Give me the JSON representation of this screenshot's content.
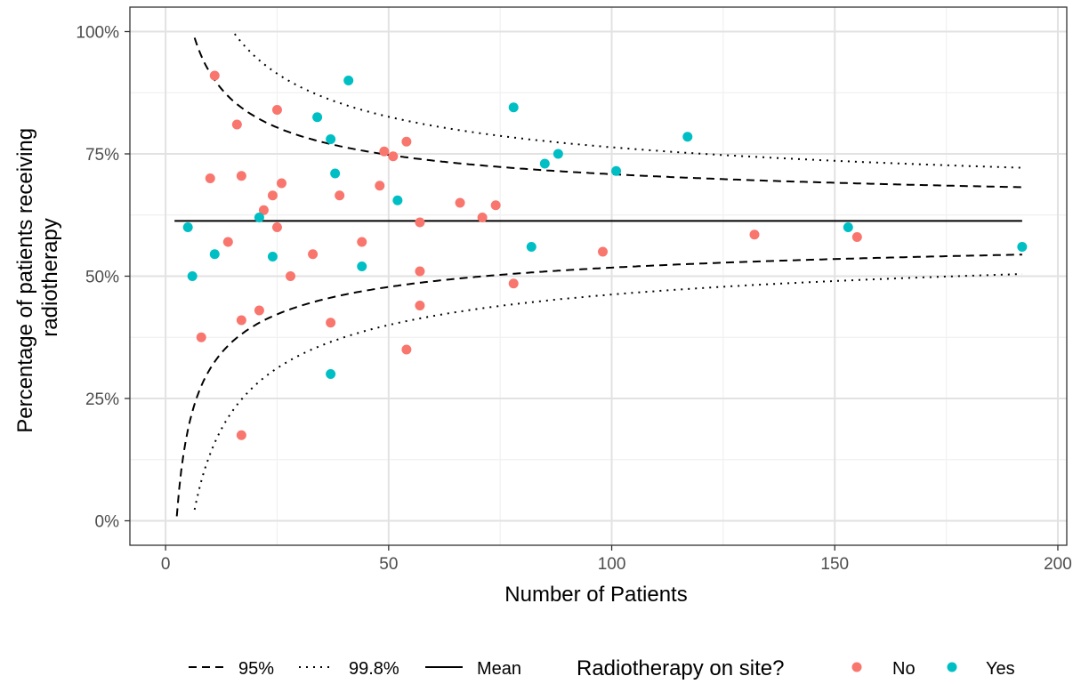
{
  "chart_data": {
    "type": "scatter",
    "xlabel": "Number of Patients",
    "ylabel_lines": [
      "Percentage of patients receiving",
      "radiotherapy"
    ],
    "xlim": [
      -8,
      202
    ],
    "ylim": [
      -0.05,
      1.05
    ],
    "xticks": [
      0,
      50,
      100,
      150,
      200
    ],
    "xtick_labels": [
      "0",
      "50",
      "100",
      "150",
      "200"
    ],
    "yticks": [
      0,
      0.25,
      0.5,
      0.75,
      1.0
    ],
    "ytick_labels": [
      "0%",
      "25%",
      "50%",
      "75%",
      "100%"
    ],
    "grid": true,
    "mean": 0.613,
    "funnel_limits": [
      {
        "label": "95%",
        "z": 1.96
      },
      {
        "label": "99.8%",
        "z": 3.09
      }
    ],
    "funnel_x_range": [
      2,
      192
    ],
    "legend": {
      "position": "bottom",
      "lines": [
        {
          "label": "95%",
          "style": "dashed"
        },
        {
          "label": "99.8%",
          "style": "dotted"
        },
        {
          "label": "Mean",
          "style": "solid"
        }
      ],
      "color_title": "Radiotherapy on site?"
    },
    "series": [
      {
        "name": "No",
        "color": "#F8766D",
        "points": [
          [
            8,
            0.375
          ],
          [
            10,
            0.7
          ],
          [
            11,
            0.91
          ],
          [
            14,
            0.57
          ],
          [
            16,
            0.81
          ],
          [
            17,
            0.705
          ],
          [
            17,
            0.41
          ],
          [
            17,
            0.175
          ],
          [
            21,
            0.43
          ],
          [
            22,
            0.635
          ],
          [
            24,
            0.665
          ],
          [
            25,
            0.84
          ],
          [
            25,
            0.6
          ],
          [
            26,
            0.69
          ],
          [
            28,
            0.5
          ],
          [
            33,
            0.545
          ],
          [
            37,
            0.405
          ],
          [
            39,
            0.665
          ],
          [
            44,
            0.57
          ],
          [
            48,
            0.685
          ],
          [
            49,
            0.755
          ],
          [
            51,
            0.745
          ],
          [
            54,
            0.775
          ],
          [
            54,
            0.35
          ],
          [
            57,
            0.61
          ],
          [
            57,
            0.51
          ],
          [
            57,
            0.44
          ],
          [
            66,
            0.65
          ],
          [
            71,
            0.62
          ],
          [
            74,
            0.645
          ],
          [
            78,
            0.485
          ],
          [
            98,
            0.55
          ],
          [
            132,
            0.585
          ],
          [
            155,
            0.58
          ]
        ]
      },
      {
        "name": "Yes",
        "color": "#00BFC4",
        "points": [
          [
            5,
            0.6
          ],
          [
            6,
            0.5
          ],
          [
            11,
            0.545
          ],
          [
            21,
            0.62
          ],
          [
            24,
            0.54
          ],
          [
            34,
            0.825
          ],
          [
            37,
            0.78
          ],
          [
            37,
            0.3
          ],
          [
            38,
            0.71
          ],
          [
            41,
            0.9
          ],
          [
            44,
            0.52
          ],
          [
            52,
            0.655
          ],
          [
            78,
            0.845
          ],
          [
            82,
            0.56
          ],
          [
            85,
            0.73
          ],
          [
            88,
            0.75
          ],
          [
            101,
            0.715
          ],
          [
            117,
            0.785
          ],
          [
            153,
            0.6
          ],
          [
            192,
            0.56
          ]
        ]
      }
    ]
  }
}
